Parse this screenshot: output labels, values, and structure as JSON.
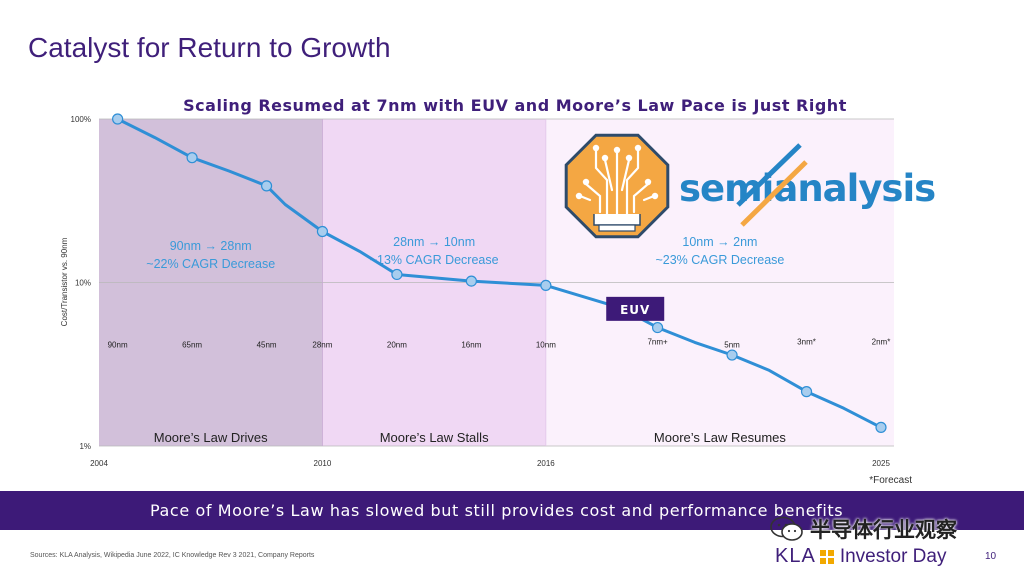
{
  "slide": {
    "title": "Catalyst for Return to Growth",
    "banner": "Pace of Moore’s Law has slowed but still provides cost and performance benefits",
    "footnote": "*Forecast",
    "sources": "Sources: KLA Analysis, Wikipedia June 2022, IC Knowledge Rev 3 2021, Company Reports",
    "page_number": "10",
    "footer_logo": "KLA",
    "footer_event": "Investor Day",
    "watermark_text": "半导体行业观察",
    "overlay_logo_text": "semianalysis"
  },
  "chart_data": {
    "type": "line",
    "title": "Scaling Resumed at 7nm with EUV and Moore’s Law Pace is Just Right",
    "ylabel": "Cost/Transistor vs. 90nm",
    "xlabel": "",
    "y_scale": "log",
    "ylim": [
      1,
      100
    ],
    "xlim": [
      2004,
      2025
    ],
    "y_ticks": [
      {
        "value": 100,
        "label": "100%"
      },
      {
        "value": 10,
        "label": "10%"
      },
      {
        "value": 1,
        "label": "1%"
      }
    ],
    "x_ticks": [
      {
        "value": 2004,
        "label": "2004"
      },
      {
        "value": 2010,
        "label": "2010"
      },
      {
        "value": 2016,
        "label": "2016"
      },
      {
        "value": 2025,
        "label": "2025"
      }
    ],
    "grid": "horizontal",
    "series": [
      {
        "color": "#2f8fd6",
        "points": [
          {
            "x": 2004.5,
            "y": 100
          },
          {
            "x": 2006.5,
            "y": 58
          },
          {
            "x": 2008.5,
            "y": 39
          },
          {
            "x": 2010.0,
            "y": 20.5
          },
          {
            "x": 2012.0,
            "y": 11.2
          },
          {
            "x": 2014.0,
            "y": 10.2
          },
          {
            "x": 2016.0,
            "y": 9.6
          },
          {
            "x": 2019.0,
            "y": 5.3
          },
          {
            "x": 2021.0,
            "y": 3.6
          },
          {
            "x": 2023.0,
            "y": 2.15
          },
          {
            "x": 2025.0,
            "y": 1.3
          }
        ],
        "minor_points": [
          {
            "x": 2005.5,
            "y": 77
          },
          {
            "x": 2007.5,
            "y": 48
          },
          {
            "x": 2009.0,
            "y": 30
          },
          {
            "x": 2011.0,
            "y": 15.5
          },
          {
            "x": 2018.0,
            "y": 7.0
          },
          {
            "x": 2020.0,
            "y": 4.3
          },
          {
            "x": 2022.0,
            "y": 2.9
          },
          {
            "x": 2024.0,
            "y": 1.7
          }
        ]
      }
    ],
    "node_labels": [
      {
        "x": 2004.5,
        "label": "90nm"
      },
      {
        "x": 2006.5,
        "label": "65nm"
      },
      {
        "x": 2008.5,
        "label": "45nm"
      },
      {
        "x": 2010.0,
        "label": "28nm"
      },
      {
        "x": 2012.0,
        "label": "20nm"
      },
      {
        "x": 2014.0,
        "label": "16nm"
      },
      {
        "x": 2016.0,
        "label": "10nm"
      },
      {
        "x": 2019.0,
        "label": "7nm+"
      },
      {
        "x": 2021.0,
        "label": "5nm"
      },
      {
        "x": 2023.0,
        "label": "3nm*"
      },
      {
        "x": 2025.0,
        "label": "2nm*"
      }
    ],
    "node_label_y": 4.0,
    "regions": [
      {
        "x0": 2004,
        "x1": 2010,
        "color": "#d2c0da",
        "label": "Moore’s Law Drives",
        "annotation": [
          "90nm → 28nm",
          "~22% CAGR Decrease"
        ]
      },
      {
        "x0": 2010,
        "x1": 2016,
        "color": "#f0d8f4",
        "label": "Moore’s Law Stalls",
        "annotation": [
          "28nm → 10nm",
          "~13% CAGR Decrease"
        ]
      },
      {
        "x0": 2016,
        "x1": 2025.5,
        "color": "#fbf1fc",
        "label": "Moore’s Law Resumes",
        "annotation": [
          "10nm → 2nm",
          "~23% CAGR Decrease"
        ]
      }
    ],
    "callouts": [
      {
        "label": "EUV",
        "x": 2018.4,
        "y": 6.9,
        "color": "#3d1a78"
      }
    ]
  }
}
